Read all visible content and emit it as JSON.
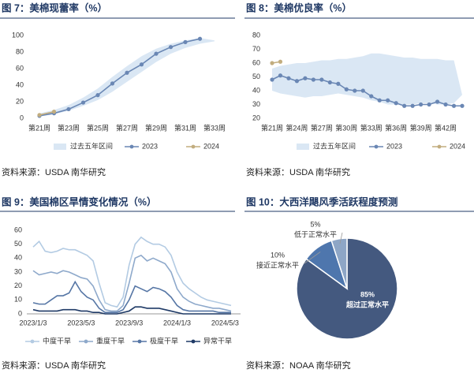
{
  "chart_data": [
    {
      "type": "line",
      "title": "图 7：美棉现蕾率（%）",
      "source": "资料来源：USDA 南华研究",
      "categories": [
        "第21周",
        null,
        "第23周",
        null,
        "第25周",
        null,
        "第27周",
        null,
        "第29周",
        null,
        "第31周",
        null,
        "第33周"
      ],
      "ylim": [
        0,
        100
      ],
      "yticks": [
        0,
        20,
        40,
        60,
        80,
        100
      ],
      "grid": false,
      "band": {
        "name": "过去五年区间",
        "color": "#dae7f4",
        "upper": [
          6,
          10,
          16,
          25,
          36,
          50,
          63,
          75,
          84,
          90,
          94,
          97,
          94
        ],
        "lower": [
          2,
          5,
          9,
          15,
          22,
          32,
          44,
          56,
          68,
          78,
          85,
          90,
          93
        ]
      },
      "series": [
        {
          "name": "2023",
          "color": "#6a87b4",
          "values": [
            3,
            6,
            11,
            19,
            28,
            42,
            55,
            65,
            78,
            86,
            92,
            96,
            null
          ]
        },
        {
          "name": "2024",
          "color": "#c2ad7f",
          "values": [
            4,
            8,
            null,
            null,
            null,
            null,
            null,
            null,
            null,
            null,
            null,
            null,
            null
          ]
        }
      ]
    },
    {
      "type": "line",
      "title": "图 8：美棉优良率（%）",
      "source": "资料来源：USDA 南华研究",
      "categories": [
        "第21周",
        null,
        null,
        "第24周",
        null,
        null,
        "第27周",
        null,
        null,
        "第30周",
        null,
        null,
        "第33周",
        null,
        null,
        "第36周",
        null,
        null,
        "第39周",
        null,
        null,
        "第42周",
        null,
        null
      ],
      "ylim": [
        20,
        80
      ],
      "yticks": [
        20,
        30,
        40,
        50,
        60,
        70,
        80
      ],
      "grid": false,
      "band": {
        "name": "过去五年区间",
        "color": "#dae7f4",
        "upper": [
          56,
          58,
          59,
          60,
          60,
          61,
          62,
          62,
          63,
          63,
          64,
          65,
          67,
          67,
          66,
          65,
          64,
          64,
          63,
          63,
          63,
          62,
          62,
          37
        ],
        "lower": [
          40,
          38,
          37,
          36,
          35,
          36,
          36,
          37,
          38,
          37,
          36,
          35,
          33,
          32,
          30,
          30,
          30,
          30,
          31,
          31,
          30,
          30,
          31,
          37
        ]
      },
      "series": [
        {
          "name": "2023",
          "color": "#6a87b4",
          "values": [
            48,
            51,
            49,
            47,
            49,
            48,
            48,
            46,
            45,
            41,
            40,
            40,
            36,
            33,
            33,
            31,
            29,
            29,
            30,
            30,
            32,
            30,
            29,
            29
          ]
        },
        {
          "name": "2024",
          "color": "#c2ad7f",
          "values": [
            60,
            61,
            null,
            null,
            null,
            null,
            null,
            null,
            null,
            null,
            null,
            null,
            null,
            null,
            null,
            null,
            null,
            null,
            null,
            null,
            null,
            null,
            null,
            null
          ]
        }
      ]
    },
    {
      "type": "line",
      "title": "图 9：美国棉区旱情变化情况（%）",
      "source": "资料来源：USDA 南华研究",
      "categories": [
        "2023/1/3",
        null,
        null,
        null,
        null,
        null,
        null,
        null,
        "2023/5/3",
        null,
        null,
        null,
        null,
        null,
        null,
        null,
        "2023/9/3",
        null,
        null,
        null,
        null,
        null,
        null,
        null,
        "2024/1/3",
        null,
        null,
        null,
        null,
        null,
        null,
        null,
        "2024/5/3",
        null
      ],
      "ylim": [
        0,
        60
      ],
      "yticks": [
        0,
        10,
        20,
        30,
        40,
        50,
        60
      ],
      "grid": false,
      "series": [
        {
          "name": "中度干旱",
          "color": "#b3cbe3",
          "values": [
            48,
            52,
            45,
            44,
            45,
            47,
            46,
            46,
            44,
            42,
            38,
            22,
            8,
            6,
            5,
            12,
            35,
            50,
            55,
            52,
            50,
            50,
            48,
            42,
            30,
            22,
            18,
            15,
            12,
            10,
            9,
            8,
            7,
            6
          ]
        },
        {
          "name": "重度干旱",
          "color": "#8ea9cb",
          "values": [
            31,
            28,
            29,
            30,
            29,
            31,
            30,
            28,
            26,
            25,
            20,
            10,
            3,
            2,
            2,
            6,
            22,
            40,
            42,
            38,
            40,
            38,
            36,
            30,
            18,
            12,
            9,
            7,
            6,
            5,
            4,
            4,
            3,
            2
          ]
        },
        {
          "name": "极度干旱",
          "color": "#5676a5",
          "values": [
            8,
            7,
            7,
            10,
            13,
            13,
            15,
            23,
            16,
            12,
            10,
            4,
            1,
            1,
            1,
            3,
            10,
            20,
            18,
            16,
            19,
            18,
            16,
            12,
            6,
            3,
            2,
            2,
            2,
            2,
            2,
            1,
            1,
            1
          ]
        },
        {
          "name": "异常干旱",
          "color": "#1f3a66",
          "values": [
            3,
            2,
            2,
            2,
            2,
            3,
            3,
            3,
            2,
            2,
            1,
            1,
            0,
            0,
            0,
            1,
            2,
            5,
            5,
            4,
            4,
            4,
            3,
            2,
            1,
            0,
            0,
            0,
            0,
            0,
            0,
            0,
            0,
            0
          ]
        }
      ]
    },
    {
      "type": "pie",
      "title": "图 10：大西洋飓风季活跃程度预测",
      "source": "资料来源：NOAA 南华研究",
      "categories": [
        "超过正常水平",
        "接近正常水平",
        "低于正常水平"
      ],
      "values": [
        85,
        10,
        5
      ],
      "value_labels": [
        "85%",
        "10%",
        "5%"
      ],
      "colors": [
        "#44597f",
        "#4e76ad",
        "#8ea6c6"
      ]
    }
  ]
}
